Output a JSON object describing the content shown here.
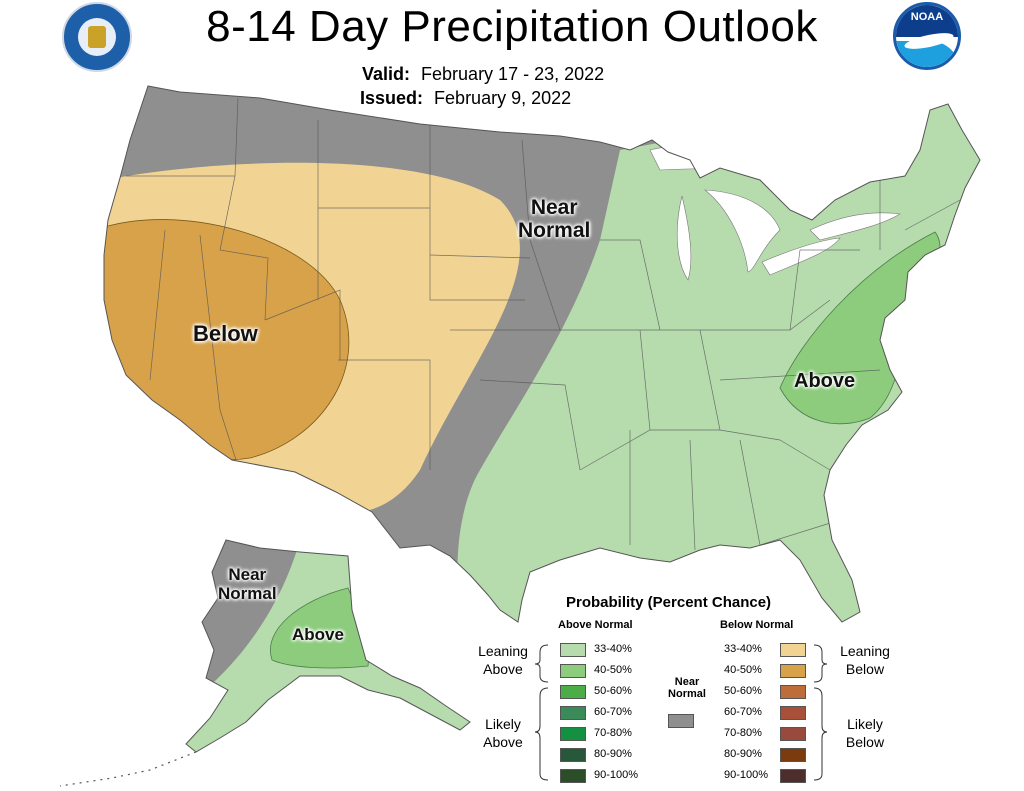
{
  "title": "8-14 Day Precipitation Outlook",
  "valid_label": "Valid:",
  "valid_value": "February 17 - 23, 2022",
  "issued_label": "Issued:",
  "issued_value": "February 9, 2022",
  "logos": {
    "left": "commerce-seal-icon",
    "right_text": "NOAA"
  },
  "map_labels": {
    "near_normal_conus_1": "Near",
    "near_normal_conus_2": "Normal",
    "below": "Below",
    "above_east": "Above",
    "near_normal_ak_1": "Near",
    "near_normal_ak_2": "Normal",
    "above_ak": "Above"
  },
  "colors": {
    "near_normal": "#8f8f8f",
    "leaning_below_33_40": "#f1d494",
    "below_40_50": "#d8a24a",
    "leaning_above_33_40": "#b6dcae",
    "above_40_50": "#8ccc7c",
    "water": "#ffffff"
  },
  "legend": {
    "title": "Probability (Percent Chance)",
    "above_head": "Above Normal",
    "below_head": "Below Normal",
    "near_head_1": "Near",
    "near_head_2": "Normal",
    "leaning_above_1": "Leaning",
    "leaning_above_2": "Above",
    "likely_above_1": "Likely",
    "likely_above_2": "Above",
    "leaning_below_1": "Leaning",
    "leaning_below_2": "Below",
    "likely_below_1": "Likely",
    "likely_below_2": "Below",
    "above_bins": [
      {
        "label": "33-40%",
        "color": "#b6dcae"
      },
      {
        "label": "40-50%",
        "color": "#8ccc7c"
      },
      {
        "label": "50-60%",
        "color": "#4aad48"
      },
      {
        "label": "60-70%",
        "color": "#3b8a5a"
      },
      {
        "label": "70-80%",
        "color": "#139140"
      },
      {
        "label": "80-90%",
        "color": "#28583a"
      },
      {
        "label": "90-100%",
        "color": "#2b4d27"
      }
    ],
    "below_bins": [
      {
        "label": "33-40%",
        "color": "#f1d494"
      },
      {
        "label": "40-50%",
        "color": "#d8a24a"
      },
      {
        "label": "50-60%",
        "color": "#bd6d3a"
      },
      {
        "label": "60-70%",
        "color": "#a85038"
      },
      {
        "label": "70-80%",
        "color": "#994a3c"
      },
      {
        "label": "80-90%",
        "color": "#7c3b0c"
      },
      {
        "label": "90-100%",
        "color": "#4e2d2d"
      }
    ],
    "near_color": "#8f8f8f"
  }
}
